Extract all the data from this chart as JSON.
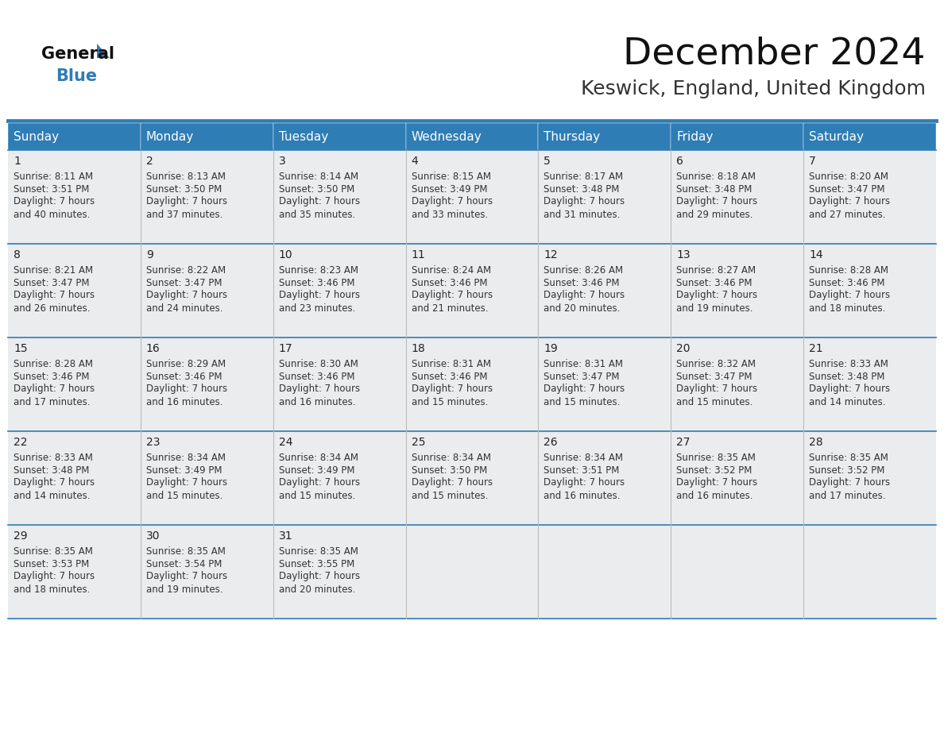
{
  "title": "December 2024",
  "subtitle": "Keswick, England, United Kingdom",
  "header_bg": "#2E7DB5",
  "header_text_color": "#FFFFFF",
  "row_bg_odd": "#EAECEE",
  "row_bg_even": "#FFFFFF",
  "border_color": "#2E7DB5",
  "grid_line_color": "#2E7DB5",
  "vert_line_color": "#BBBBBB",
  "text_color": "#333333",
  "day_num_color": "#222222",
  "days_of_week": [
    "Sunday",
    "Monday",
    "Tuesday",
    "Wednesday",
    "Thursday",
    "Friday",
    "Saturday"
  ],
  "calendar_data": [
    [
      {
        "day": 1,
        "sunrise": "8:11 AM",
        "sunset": "3:51 PM",
        "daylight_hours": 7,
        "daylight_minutes": "40"
      },
      {
        "day": 2,
        "sunrise": "8:13 AM",
        "sunset": "3:50 PM",
        "daylight_hours": 7,
        "daylight_minutes": "37"
      },
      {
        "day": 3,
        "sunrise": "8:14 AM",
        "sunset": "3:50 PM",
        "daylight_hours": 7,
        "daylight_minutes": "35"
      },
      {
        "day": 4,
        "sunrise": "8:15 AM",
        "sunset": "3:49 PM",
        "daylight_hours": 7,
        "daylight_minutes": "33"
      },
      {
        "day": 5,
        "sunrise": "8:17 AM",
        "sunset": "3:48 PM",
        "daylight_hours": 7,
        "daylight_minutes": "31"
      },
      {
        "day": 6,
        "sunrise": "8:18 AM",
        "sunset": "3:48 PM",
        "daylight_hours": 7,
        "daylight_minutes": "29"
      },
      {
        "day": 7,
        "sunrise": "8:20 AM",
        "sunset": "3:47 PM",
        "daylight_hours": 7,
        "daylight_minutes": "27"
      }
    ],
    [
      {
        "day": 8,
        "sunrise": "8:21 AM",
        "sunset": "3:47 PM",
        "daylight_hours": 7,
        "daylight_minutes": "26"
      },
      {
        "day": 9,
        "sunrise": "8:22 AM",
        "sunset": "3:47 PM",
        "daylight_hours": 7,
        "daylight_minutes": "24"
      },
      {
        "day": 10,
        "sunrise": "8:23 AM",
        "sunset": "3:46 PM",
        "daylight_hours": 7,
        "daylight_minutes": "23"
      },
      {
        "day": 11,
        "sunrise": "8:24 AM",
        "sunset": "3:46 PM",
        "daylight_hours": 7,
        "daylight_minutes": "21"
      },
      {
        "day": 12,
        "sunrise": "8:26 AM",
        "sunset": "3:46 PM",
        "daylight_hours": 7,
        "daylight_minutes": "20"
      },
      {
        "day": 13,
        "sunrise": "8:27 AM",
        "sunset": "3:46 PM",
        "daylight_hours": 7,
        "daylight_minutes": "19"
      },
      {
        "day": 14,
        "sunrise": "8:28 AM",
        "sunset": "3:46 PM",
        "daylight_hours": 7,
        "daylight_minutes": "18"
      }
    ],
    [
      {
        "day": 15,
        "sunrise": "8:28 AM",
        "sunset": "3:46 PM",
        "daylight_hours": 7,
        "daylight_minutes": "17"
      },
      {
        "day": 16,
        "sunrise": "8:29 AM",
        "sunset": "3:46 PM",
        "daylight_hours": 7,
        "daylight_minutes": "16"
      },
      {
        "day": 17,
        "sunrise": "8:30 AM",
        "sunset": "3:46 PM",
        "daylight_hours": 7,
        "daylight_minutes": "16"
      },
      {
        "day": 18,
        "sunrise": "8:31 AM",
        "sunset": "3:46 PM",
        "daylight_hours": 7,
        "daylight_minutes": "15"
      },
      {
        "day": 19,
        "sunrise": "8:31 AM",
        "sunset": "3:47 PM",
        "daylight_hours": 7,
        "daylight_minutes": "15"
      },
      {
        "day": 20,
        "sunrise": "8:32 AM",
        "sunset": "3:47 PM",
        "daylight_hours": 7,
        "daylight_minutes": "15"
      },
      {
        "day": 21,
        "sunrise": "8:33 AM",
        "sunset": "3:48 PM",
        "daylight_hours": 7,
        "daylight_minutes": "14"
      }
    ],
    [
      {
        "day": 22,
        "sunrise": "8:33 AM",
        "sunset": "3:48 PM",
        "daylight_hours": 7,
        "daylight_minutes": "14"
      },
      {
        "day": 23,
        "sunrise": "8:34 AM",
        "sunset": "3:49 PM",
        "daylight_hours": 7,
        "daylight_minutes": "15"
      },
      {
        "day": 24,
        "sunrise": "8:34 AM",
        "sunset": "3:49 PM",
        "daylight_hours": 7,
        "daylight_minutes": "15"
      },
      {
        "day": 25,
        "sunrise": "8:34 AM",
        "sunset": "3:50 PM",
        "daylight_hours": 7,
        "daylight_minutes": "15"
      },
      {
        "day": 26,
        "sunrise": "8:34 AM",
        "sunset": "3:51 PM",
        "daylight_hours": 7,
        "daylight_minutes": "16"
      },
      {
        "day": 27,
        "sunrise": "8:35 AM",
        "sunset": "3:52 PM",
        "daylight_hours": 7,
        "daylight_minutes": "16"
      },
      {
        "day": 28,
        "sunrise": "8:35 AM",
        "sunset": "3:52 PM",
        "daylight_hours": 7,
        "daylight_minutes": "17"
      }
    ],
    [
      {
        "day": 29,
        "sunrise": "8:35 AM",
        "sunset": "3:53 PM",
        "daylight_hours": 7,
        "daylight_minutes": "18"
      },
      {
        "day": 30,
        "sunrise": "8:35 AM",
        "sunset": "3:54 PM",
        "daylight_hours": 7,
        "daylight_minutes": "19"
      },
      {
        "day": 31,
        "sunrise": "8:35 AM",
        "sunset": "3:55 PM",
        "daylight_hours": 7,
        "daylight_minutes": "20"
      },
      null,
      null,
      null,
      null
    ]
  ],
  "title_fontsize": 34,
  "subtitle_fontsize": 18,
  "logo_general_fontsize": 15,
  "logo_blue_fontsize": 15,
  "header_fontsize": 11,
  "day_num_fontsize": 10,
  "cell_text_fontsize": 8.5
}
